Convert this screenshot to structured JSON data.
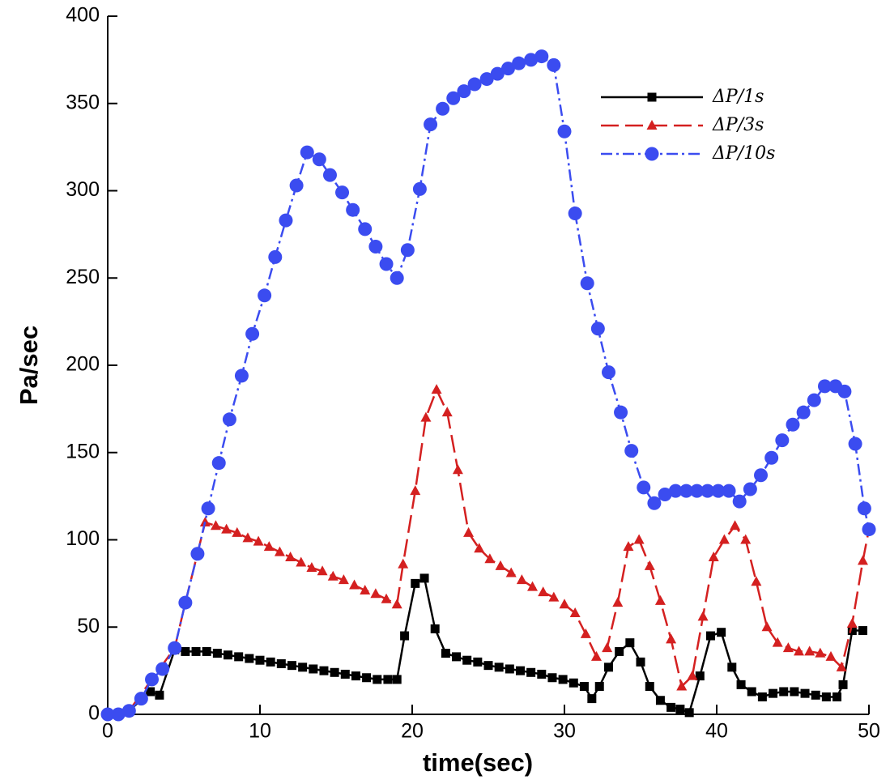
{
  "chart_data": {
    "type": "line",
    "xlabel": "time(sec)",
    "ylabel": "Pa/sec",
    "xlim": [
      0,
      50
    ],
    "ylim": [
      0,
      400
    ],
    "xticks": [
      0,
      10,
      20,
      30,
      40,
      50
    ],
    "yticks": [
      0,
      50,
      100,
      150,
      200,
      250,
      300,
      350,
      400
    ],
    "legend": "upper right",
    "series": [
      {
        "name": "ΔP/1s",
        "color": "#000000",
        "marker": "square",
        "line_style": "solid",
        "x": [
          0,
          0.7,
          1.4,
          2.8,
          3.4,
          4.4,
          5.1,
          5.8,
          6.5,
          7.2,
          7.9,
          8.6,
          9.3,
          10.0,
          10.7,
          11.4,
          12.1,
          12.8,
          13.5,
          14.2,
          14.9,
          15.6,
          16.3,
          17.0,
          17.7,
          18.4,
          19.0,
          19.5,
          20.2,
          20.8,
          21.5,
          22.2,
          22.9,
          23.6,
          24.3,
          25.0,
          25.7,
          26.4,
          27.1,
          27.8,
          28.5,
          29.2,
          29.9,
          30.6,
          31.3,
          31.8,
          32.3,
          32.9,
          33.6,
          34.3,
          35.0,
          35.6,
          36.3,
          37.0,
          37.6,
          38.2,
          38.9,
          39.6,
          40.3,
          41.0,
          41.6,
          42.3,
          43.0,
          43.7,
          44.4,
          45.1,
          45.8,
          46.5,
          47.2,
          47.9,
          48.3,
          48.9,
          49.6
        ],
        "values": [
          0,
          0,
          2,
          13,
          11,
          37,
          36,
          36,
          36,
          35,
          34,
          33,
          32,
          31,
          30,
          29,
          28,
          27,
          26,
          25,
          24,
          23,
          22,
          21,
          20,
          20,
          20,
          45,
          75,
          78,
          49,
          35,
          33,
          31,
          30,
          28,
          27,
          26,
          25,
          24,
          23,
          21,
          20,
          18,
          16,
          9,
          16,
          27,
          36,
          41,
          30,
          16,
          8,
          4,
          3,
          1,
          22,
          45,
          47,
          27,
          17,
          13,
          10,
          12,
          13,
          13,
          12,
          11,
          10,
          10,
          17,
          48,
          48
        ]
      },
      {
        "name": "ΔP/3s",
        "color": "#d42020",
        "marker": "triangle",
        "line_style": "dashed",
        "x": [
          0,
          1.4,
          2.9,
          4.4,
          5.1,
          6.4,
          7.1,
          7.8,
          8.5,
          9.2,
          9.9,
          10.6,
          11.3,
          12.0,
          12.7,
          13.4,
          14.1,
          14.8,
          15.5,
          16.2,
          16.9,
          17.6,
          18.3,
          19.0,
          19.4,
          20.2,
          20.9,
          21.6,
          22.3,
          23.0,
          23.7,
          24.4,
          25.1,
          25.8,
          26.5,
          27.2,
          27.9,
          28.6,
          29.3,
          30.0,
          30.7,
          31.4,
          32.1,
          32.8,
          33.5,
          34.2,
          34.9,
          35.6,
          36.3,
          37.0,
          37.7,
          38.4,
          39.1,
          39.8,
          40.5,
          41.2,
          41.9,
          42.6,
          43.3,
          44.0,
          44.7,
          45.4,
          46.1,
          46.8,
          47.5,
          48.2,
          48.9,
          49.6,
          50.0
        ],
        "values": [
          0,
          2,
          20,
          38,
          64,
          110,
          108,
          106,
          104,
          101,
          99,
          96,
          93,
          90,
          87,
          84,
          82,
          79,
          77,
          74,
          71,
          69,
          66,
          63,
          86,
          128,
          170,
          186,
          173,
          140,
          104,
          95,
          89,
          85,
          81,
          77,
          73,
          70,
          67,
          63,
          58,
          46,
          33,
          38,
          64,
          96,
          100,
          85,
          65,
          43,
          16,
          22,
          56,
          90,
          100,
          108,
          100,
          76,
          50,
          41,
          38,
          36,
          36,
          35,
          33,
          27,
          52,
          88,
          106
        ]
      },
      {
        "name": "ΔP/10s",
        "color": "#3b4cf0",
        "marker": "circle",
        "line_style": "dashdot",
        "x": [
          0,
          0.7,
          1.4,
          2.2,
          2.9,
          3.6,
          4.4,
          5.1,
          5.9,
          6.6,
          7.3,
          8.0,
          8.8,
          9.5,
          10.3,
          11.0,
          11.7,
          12.4,
          13.1,
          13.9,
          14.6,
          15.4,
          16.1,
          16.9,
          17.6,
          18.3,
          19.0,
          19.7,
          20.5,
          21.2,
          22.0,
          22.7,
          23.4,
          24.1,
          24.9,
          25.6,
          26.3,
          27.0,
          27.8,
          28.5,
          29.3,
          30.0,
          30.7,
          31.5,
          32.2,
          32.9,
          33.7,
          34.4,
          35.2,
          35.9,
          36.6,
          37.3,
          38.0,
          38.7,
          39.4,
          40.1,
          40.8,
          41.5,
          42.2,
          42.9,
          43.6,
          44.3,
          45.0,
          45.7,
          46.4,
          47.1,
          47.8,
          48.4,
          49.1,
          49.7,
          50.0
        ],
        "values": [
          0,
          0,
          2,
          9,
          20,
          26,
          38,
          64,
          92,
          118,
          144,
          169,
          194,
          218,
          240,
          262,
          283,
          303,
          322,
          318,
          309,
          299,
          289,
          278,
          268,
          258,
          250,
          266,
          301,
          338,
          347,
          353,
          357,
          361,
          364,
          367,
          370,
          373,
          375,
          377,
          372,
          334,
          287,
          247,
          221,
          196,
          173,
          151,
          130,
          121,
          126,
          128,
          128,
          128,
          128,
          128,
          128,
          122,
          129,
          137,
          147,
          157,
          166,
          173,
          180,
          188,
          188,
          185,
          155,
          118,
          106
        ]
      }
    ]
  }
}
